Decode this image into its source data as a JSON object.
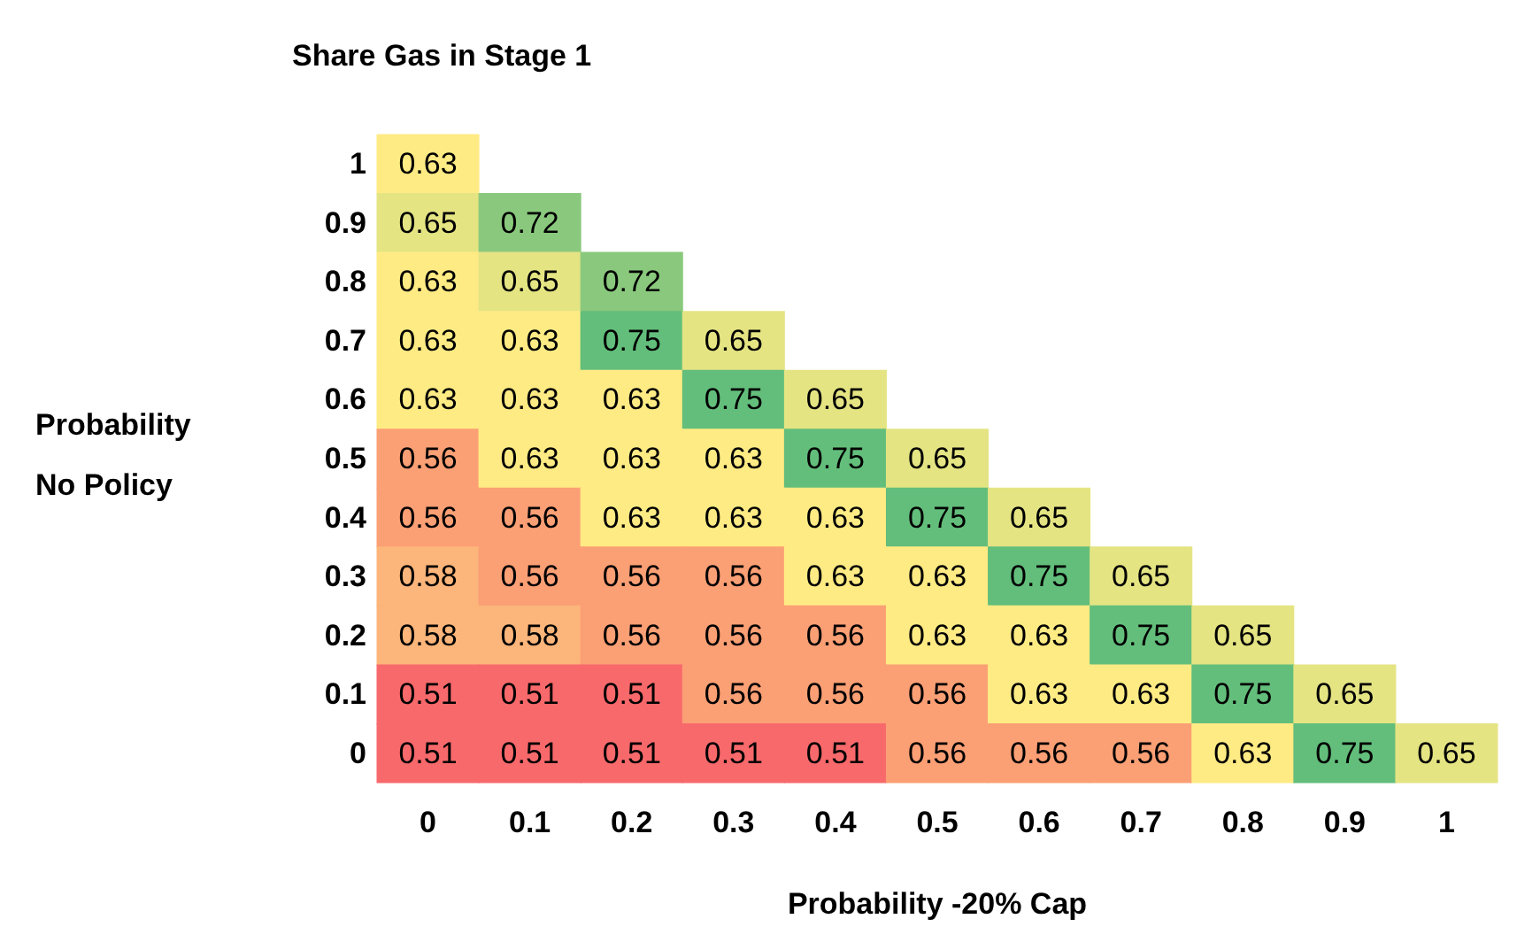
{
  "chart_data": {
    "type": "heatmap",
    "title": "Share Gas in Stage 1",
    "xlabel": "Probability -20% Cap",
    "ylabel": "Probability\nNo Policy",
    "categories": [
      "0",
      "0.1",
      "0.2",
      "0.3",
      "0.4",
      "0.5",
      "0.6",
      "0.7",
      "0.8",
      "0.9",
      "1"
    ],
    "y_categories": [
      "1",
      "0.9",
      "0.8",
      "0.7",
      "0.6",
      "0.5",
      "0.4",
      "0.3",
      "0.2",
      "0.1",
      "0"
    ],
    "cells": [
      [
        0.63,
        null,
        null,
        null,
        null,
        null,
        null,
        null,
        null,
        null,
        null
      ],
      [
        0.65,
        0.72,
        null,
        null,
        null,
        null,
        null,
        null,
        null,
        null,
        null
      ],
      [
        0.63,
        0.65,
        0.72,
        null,
        null,
        null,
        null,
        null,
        null,
        null,
        null
      ],
      [
        0.63,
        0.63,
        0.75,
        0.65,
        null,
        null,
        null,
        null,
        null,
        null,
        null
      ],
      [
        0.63,
        0.63,
        0.63,
        0.75,
        0.65,
        null,
        null,
        null,
        null,
        null,
        null
      ],
      [
        0.56,
        0.63,
        0.63,
        0.63,
        0.75,
        0.65,
        null,
        null,
        null,
        null,
        null
      ],
      [
        0.56,
        0.56,
        0.63,
        0.63,
        0.63,
        0.75,
        0.65,
        null,
        null,
        null,
        null
      ],
      [
        0.58,
        0.56,
        0.56,
        0.56,
        0.63,
        0.63,
        0.75,
        0.65,
        null,
        null,
        null
      ],
      [
        0.58,
        0.58,
        0.56,
        0.56,
        0.56,
        0.63,
        0.63,
        0.75,
        0.65,
        null,
        null
      ],
      [
        0.51,
        0.51,
        0.51,
        0.56,
        0.56,
        0.56,
        0.63,
        0.63,
        0.75,
        0.65,
        null
      ],
      [
        0.51,
        0.51,
        0.51,
        0.51,
        0.51,
        0.56,
        0.56,
        0.56,
        0.63,
        0.75,
        0.65
      ]
    ],
    "data_labels": true
  }
}
